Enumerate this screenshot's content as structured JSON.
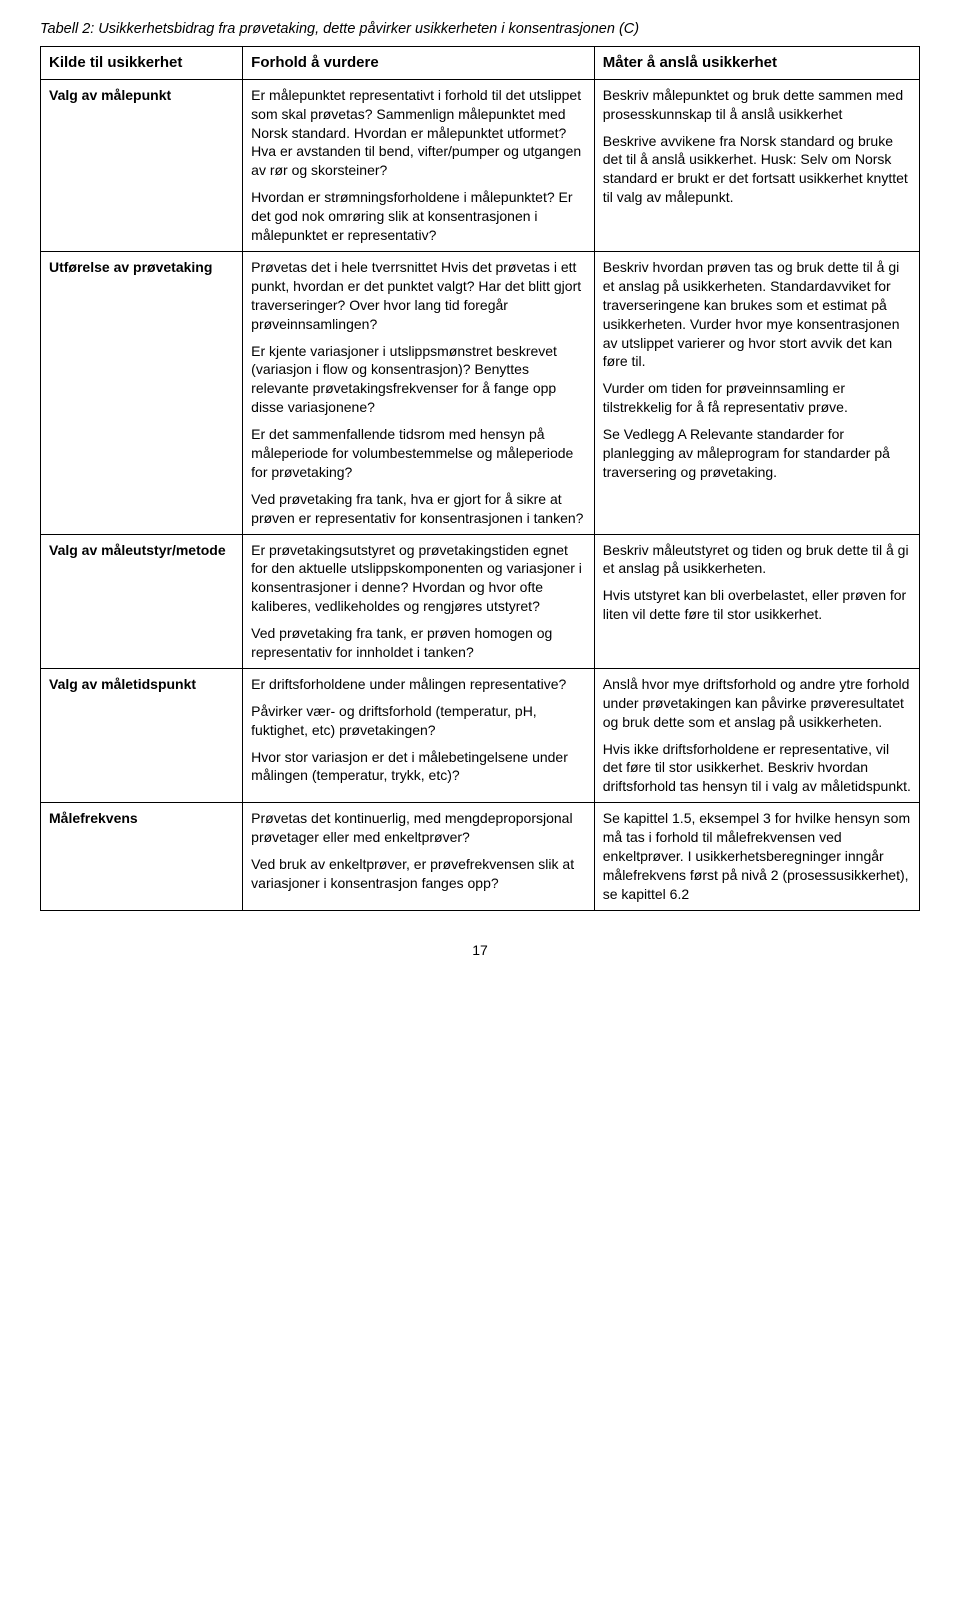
{
  "caption": "Tabell 2: Usikkerhetsbidrag fra prøvetaking, dette påvirker usikkerheten i konsentrasjonen (C)",
  "headers": {
    "col1": "Kilde til usikkerhet",
    "col2": "Forhold å vurdere",
    "col3": "Måter å anslå usikkerhet"
  },
  "rows": {
    "r1": {
      "c1": "Valg av målepunkt",
      "c2": {
        "p1": "Er målepunktet representativt i forhold til det utslippet som skal prøvetas? Sammenlign målepunktet med Norsk standard. Hvordan er målepunktet utformet? Hva er avstanden til bend, vifter/pumper og utgangen av rør og skorsteiner?",
        "p2": "Hvordan er strømningsforholdene i målepunktet? Er det god nok omrøring slik at konsentrasjonen i målepunktet er representativ?"
      },
      "c3": {
        "p1": "Beskriv målepunktet og bruk dette sammen med prosesskunnskap til å anslå usikkerhet",
        "p2": "Beskrive avvikene fra Norsk standard og bruke det til å anslå usikkerhet. Husk: Selv om Norsk standard er brukt er det fortsatt usikkerhet knyttet til valg av målepunkt."
      }
    },
    "r2": {
      "c1": "Utførelse av prøvetaking",
      "c2": {
        "p1": "Prøvetas det i hele tverrsnittet Hvis det prøvetas i ett punkt, hvordan er det punktet valgt? Har det blitt gjort traverseringer? Over hvor lang tid foregår prøveinnsamlingen?",
        "p2": "Er kjente variasjoner i utslippsmønstret beskrevet (variasjon i flow og konsentrasjon)? Benyttes relevante prøvetakingsfrekvenser for å fange opp disse variasjonene?",
        "p3": "Er det sammenfallende tidsrom med hensyn på måleperiode for volumbestemmelse og måleperiode for prøvetaking?",
        "p4": "Ved prøvetaking fra tank, hva er gjort for å sikre at prøven er representativ for konsentrasjonen i tanken?"
      },
      "c3": {
        "p1": "Beskriv hvordan prøven tas og bruk dette til å gi et anslag på usikkerheten. Standardavviket for traverseringene kan brukes som et estimat på usikkerheten. Vurder hvor mye konsentrasjonen av utslippet varierer og hvor stort avvik det kan føre til.",
        "p2": "Vurder om tiden for prøveinnsamling er tilstrekkelig for å få representativ prøve.",
        "p3": "Se Vedlegg A Relevante standarder for planlegging av måleprogram for standarder på traversering og prøvetaking."
      }
    },
    "r3": {
      "c1": "Valg av måleutstyr/metode",
      "c2": {
        "p1": "Er prøvetakingsutstyret og prøvetakingstiden egnet for den aktuelle utslippskomponenten og variasjoner i konsentrasjoner i denne? Hvordan og hvor ofte kaliberes, vedlikeholdes og rengjøres utstyret?",
        "p2": "Ved prøvetaking fra tank, er prøven homogen og representativ for innholdet i tanken?"
      },
      "c3": {
        "p1": "Beskriv måleutstyret og tiden og bruk dette til å gi et anslag på usikkerheten.",
        "p2": "Hvis utstyret kan bli overbelastet, eller prøven for liten vil dette føre til stor usikkerhet."
      }
    },
    "r4": {
      "c1": "Valg av måletidspunkt",
      "c2": {
        "p1": "Er driftsforholdene under målingen representative?",
        "p2": "Påvirker vær- og driftsforhold (temperatur, pH, fuktighet, etc) prøvetakingen?",
        "p3": "Hvor stor variasjon er det i målebetingelsene under målingen (temperatur, trykk, etc)?"
      },
      "c3": {
        "p1": "Anslå hvor mye driftsforhold og andre ytre forhold under prøvetakingen kan påvirke prøveresultatet og bruk dette som et anslag på usikkerheten.",
        "p2": "Hvis ikke driftsforholdene er representative, vil det føre til stor usikkerhet. Beskriv hvordan driftsforhold tas hensyn til i valg av måletidspunkt."
      }
    },
    "r5": {
      "c1": "Målefrekvens",
      "c2": {
        "p1": "Prøvetas det kontinuerlig, med mengdeproporsjonal prøvetager eller med enkeltprøver?",
        "p2": "Ved bruk av enkeltprøver, er prøvefrekvensen slik at variasjoner i konsentrasjon fanges opp?"
      },
      "c3": {
        "p1": "Se kapittel 1.5, eksempel 3 for hvilke hensyn som må tas i forhold til målefrekvensen ved enkeltprøver. I usikkerhetsberegninger inngår målefrekvens først på nivå 2 (prosessusikkerhet), se kapittel 6.2"
      }
    }
  },
  "pageNumber": "17"
}
